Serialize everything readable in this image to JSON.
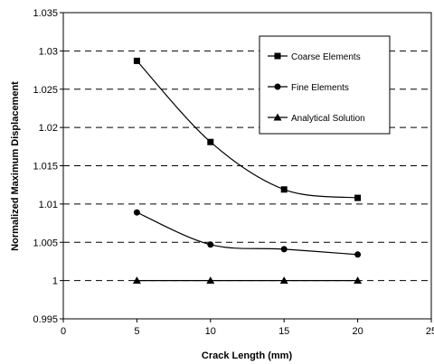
{
  "chart_data": {
    "type": "line",
    "title": "",
    "xlabel": "Crack Length (mm)",
    "ylabel": "Normalized Maximum Displacement",
    "xlim": [
      0,
      25
    ],
    "ylim": [
      0.995,
      1.035
    ],
    "x_ticks": [
      0,
      5,
      10,
      15,
      20,
      25
    ],
    "y_ticks": [
      0.995,
      1,
      1.005,
      1.01,
      1.015,
      1.02,
      1.025,
      1.03,
      1.035
    ],
    "x_tick_labels": [
      "0",
      "5",
      "10",
      "15",
      "20",
      "25"
    ],
    "y_tick_labels": [
      "0.995",
      "1",
      "1.005",
      "1.01",
      "1.015",
      "1.02",
      "1.025",
      "1.03",
      "1.035"
    ],
    "grid": "horizontal dashed",
    "legend_position": "top-right",
    "series": [
      {
        "name": "Coarse Elements",
        "marker": "square",
        "smooth": true,
        "x": [
          5,
          10,
          15,
          20
        ],
        "values": [
          1.0287,
          1.0181,
          1.0119,
          1.0108
        ]
      },
      {
        "name": "Fine Elements",
        "marker": "circle",
        "smooth": true,
        "x": [
          5,
          10,
          15,
          20
        ],
        "values": [
          1.0089,
          1.0047,
          1.0041,
          1.0034
        ]
      },
      {
        "name": "Analytical Solution",
        "marker": "triangle",
        "smooth": false,
        "x": [
          5,
          10,
          15,
          20
        ],
        "values": [
          1.0,
          1.0,
          1.0,
          1.0
        ]
      }
    ]
  }
}
